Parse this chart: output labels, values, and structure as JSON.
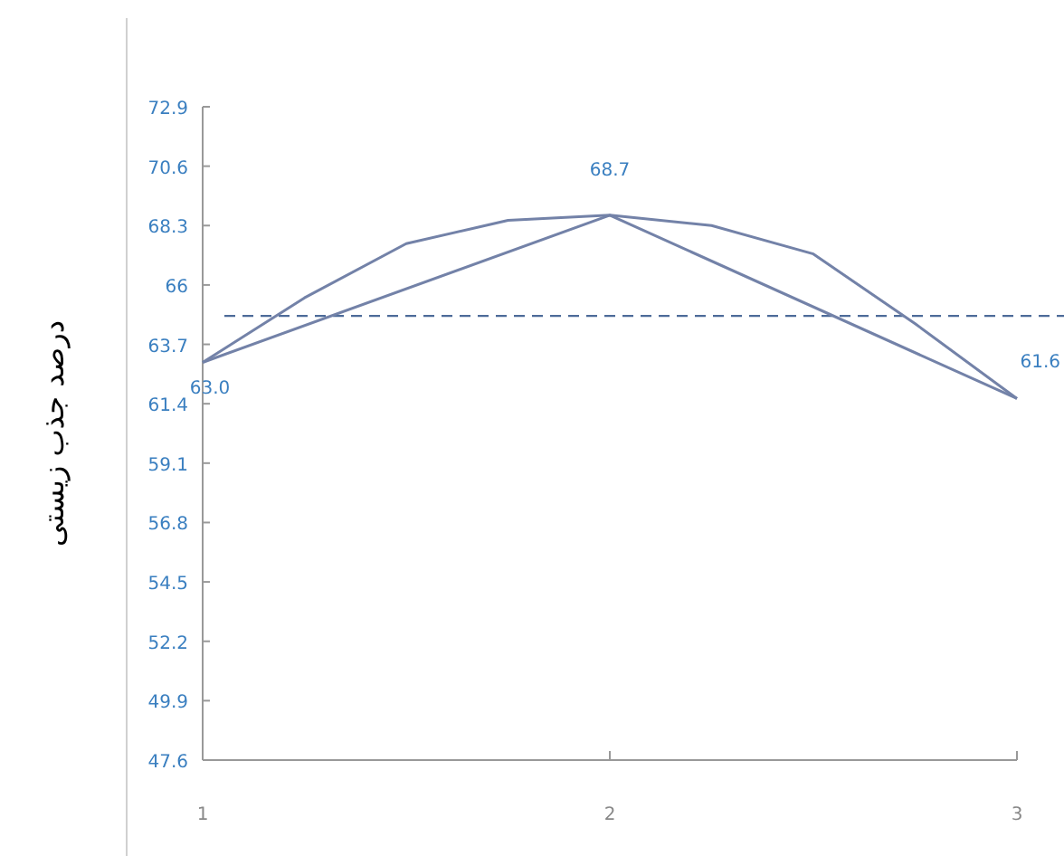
{
  "chart_data": {
    "type": "line",
    "ylabel": "درصد جذب زیستی",
    "xlim": [
      1,
      3
    ],
    "xticks": [
      1,
      2,
      3
    ],
    "ylim": [
      47.6,
      72.9
    ],
    "yticks": [
      47.6,
      49.9,
      52.2,
      54.5,
      56.8,
      59.1,
      61.4,
      63.7,
      66,
      68.3,
      70.6,
      72.9
    ],
    "series": [
      {
        "color": "#7382a8",
        "x": [
          1,
          2,
          3
        ],
        "values": [
          63.0,
          68.7,
          61.6
        ],
        "value_labels": [
          "63.0",
          "68.7",
          "61.6"
        ]
      },
      {
        "color": "#7382a8",
        "x": [
          1,
          1.25,
          1.5,
          1.75,
          2,
          2.25,
          2.5,
          2.75,
          3
        ],
        "values": [
          63.0,
          65.5,
          67.6,
          68.5,
          68.7,
          68.3,
          67.2,
          64.5,
          61.6
        ]
      }
    ],
    "ref_lines": [
      {
        "axis": "y",
        "value": 64.8,
        "color": "#4d6b99",
        "line_style": "dashed"
      }
    ],
    "grid": false,
    "marker": "none",
    "line_style": "solid"
  }
}
